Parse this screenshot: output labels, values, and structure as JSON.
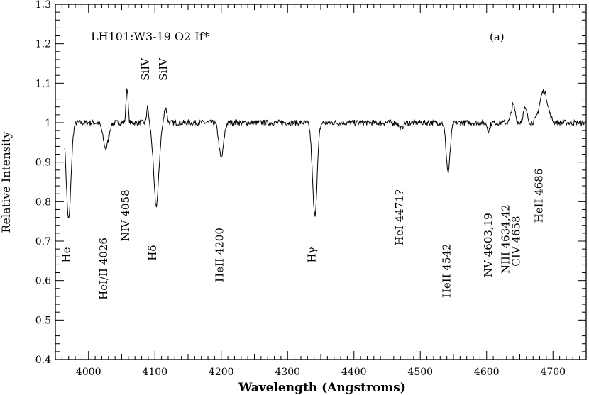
{
  "chart_data": {
    "type": "line",
    "title": "LH101:W3-19 O2 If*",
    "panel": "(a)",
    "xlabel": "Wavelength (Angstroms)",
    "ylabel": "Relative Intensity",
    "xlim": [
      3950,
      4750
    ],
    "ylim": [
      0.4,
      1.3
    ],
    "xticks": [
      4000,
      4100,
      4200,
      4300,
      4400,
      4500,
      4600,
      4700
    ],
    "yticks": [
      0.4,
      0.5,
      0.6,
      0.7,
      0.8,
      0.9,
      1,
      1.1,
      1.2,
      1.3
    ],
    "grid": false,
    "continuum": 1.0,
    "features": [
      {
        "name": "He",
        "center": 3970,
        "depth": -0.245,
        "width": 3.5
      },
      {
        "name": "HeI/II 4026",
        "center": 4026,
        "depth": -0.065,
        "width": 4
      },
      {
        "name": "NIV 4058",
        "center": 4058,
        "depth": 0.09,
        "width": 1.5
      },
      {
        "name": "SiIV",
        "center": 4089,
        "depth": 0.04,
        "width": 1.5
      },
      {
        "name": "Hδ",
        "center": 4102,
        "depth": -0.21,
        "width": 4
      },
      {
        "name": "SiIV",
        "center": 4116,
        "depth": 0.04,
        "width": 2
      },
      {
        "name": "HeII 4200",
        "center": 4200,
        "depth": -0.09,
        "width": 3.5
      },
      {
        "name": "Hγ",
        "center": 4341,
        "depth": -0.235,
        "width": 3.5
      },
      {
        "name": "HeI 4471?",
        "center": 4471,
        "depth": -0.015,
        "width": 3
      },
      {
        "name": "HeII 4542",
        "center": 4542,
        "depth": -0.125,
        "width": 3
      },
      {
        "name": "NV 4603,19",
        "center": 4603,
        "depth": -0.02,
        "width": 2
      },
      {
        "name": "NIII 4634,42",
        "center": 4640,
        "depth": 0.045,
        "width": 3
      },
      {
        "name": "CIV 4658",
        "center": 4658,
        "depth": 0.035,
        "width": 3
      },
      {
        "name": "HeII 4686",
        "center": 4686,
        "depth": 0.08,
        "width": 6
      }
    ],
    "labels": [
      {
        "text": "He",
        "x": 3972,
        "y": 0.665
      },
      {
        "text": "HeI/II 4026",
        "x": 4028,
        "y": 0.63
      },
      {
        "text": "NIV 4058",
        "x": 4061,
        "y": 0.765
      },
      {
        "text": "SiIV",
        "x": 4091,
        "y": 1.135
      },
      {
        "text": "SiIV",
        "x": 4118,
        "y": 1.135
      },
      {
        "text": "Hδ",
        "x": 4102,
        "y": 0.67
      },
      {
        "text": "HeII 4200",
        "x": 4203,
        "y": 0.665
      },
      {
        "text": "Hγ",
        "x": 4342,
        "y": 0.665
      },
      {
        "text": "HeI 4471?",
        "x": 4474,
        "y": 0.76
      },
      {
        "text": "HeII 4542",
        "x": 4545,
        "y": 0.625
      },
      {
        "text": "NV 4603,19",
        "x": 4608,
        "y": 0.69
      },
      {
        "text": "NIII 4634,42",
        "x": 4634,
        "y": 0.705
      },
      {
        "text": "CIV 4658",
        "x": 4650,
        "y": 0.7
      },
      {
        "text": "HeII 4686",
        "x": 4684,
        "y": 0.815
      }
    ]
  }
}
